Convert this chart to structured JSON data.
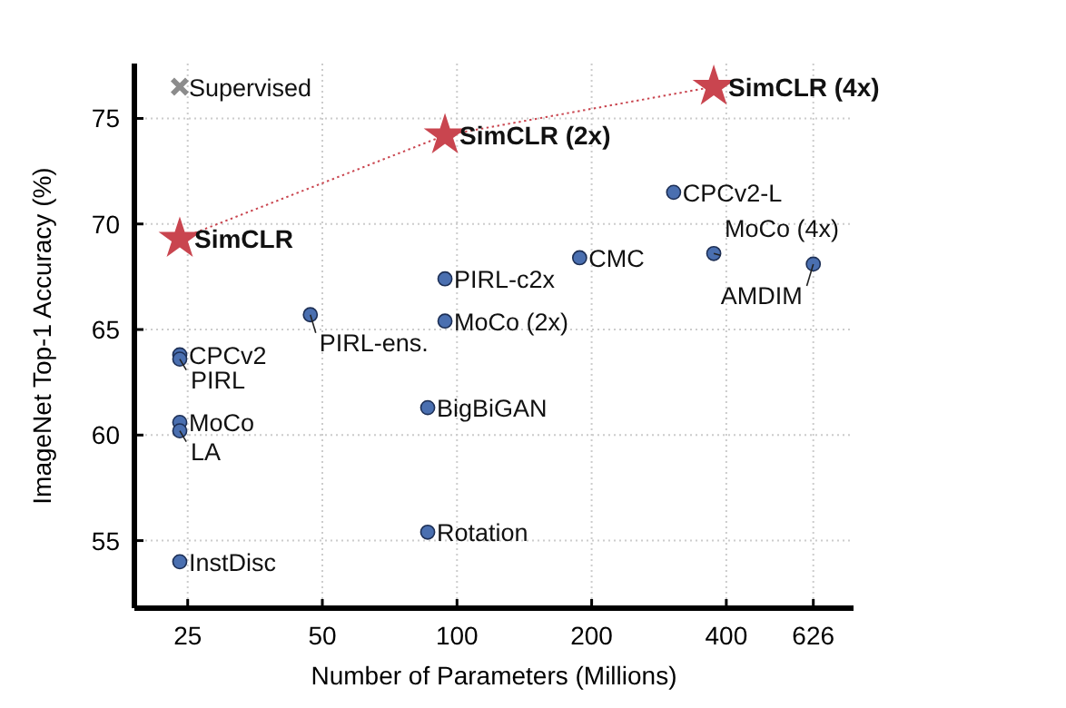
{
  "chart_data": {
    "type": "scatter",
    "xlabel": "Number of Parameters (Millions)",
    "ylabel": "ImageNet Top-1 Accuracy (%)",
    "log": "x",
    "xlim": [
      19,
      770
    ],
    "xticks": [
      25,
      50,
      100,
      200,
      400,
      626
    ],
    "ylim": [
      51.8,
      77.6
    ],
    "yticks": [
      55,
      60,
      65,
      70,
      75
    ],
    "grid": true,
    "series": [
      {
        "marker": "circle",
        "color": "#4a6fb0",
        "x": [
          305,
          375,
          626,
          188,
          94,
          94,
          47,
          24,
          24,
          24,
          24,
          24,
          86,
          86
        ],
        "values": [
          71.5,
          68.6,
          68.1,
          68.4,
          67.4,
          65.4,
          65.7,
          63.8,
          63.6,
          60.6,
          60.2,
          54.0,
          61.3,
          55.4
        ]
      },
      {
        "marker": "cross",
        "color": "#8c8c8c",
        "x": [
          24
        ],
        "values": [
          76.5
        ]
      },
      {
        "type": "line",
        "marker": "star",
        "line_style": "dotted",
        "color": "#c9454f",
        "x": [
          24,
          94,
          375
        ],
        "values": [
          69.3,
          74.2,
          76.5
        ]
      }
    ],
    "annotations": [
      {
        "text": "CPCv2-L",
        "x": 305,
        "y": 71.5
      },
      {
        "text": "MoCo (4x)",
        "x": 375,
        "y": 68.6
      },
      {
        "text": "AMDIM",
        "x": 626,
        "y": 68.1
      },
      {
        "text": "CMC",
        "x": 188,
        "y": 68.4
      },
      {
        "text": "PIRL-c2x",
        "x": 94,
        "y": 67.4
      },
      {
        "text": "MoCo (2x)",
        "x": 94,
        "y": 65.4
      },
      {
        "text": "PIRL-ens.",
        "x": 47,
        "y": 65.7
      },
      {
        "text": "CPCv2",
        "x": 24,
        "y": 63.8
      },
      {
        "text": "PIRL",
        "x": 24,
        "y": 63.6
      },
      {
        "text": "MoCo",
        "x": 24,
        "y": 60.6
      },
      {
        "text": "LA",
        "x": 24,
        "y": 60.2
      },
      {
        "text": "InstDisc",
        "x": 24,
        "y": 54.0
      },
      {
        "text": "BigBiGAN",
        "x": 86,
        "y": 61.3
      },
      {
        "text": "Rotation",
        "x": 86,
        "y": 55.4
      },
      {
        "text": "Supervised",
        "x": 24,
        "y": 76.5
      },
      {
        "text": "SimCLR",
        "x": 24,
        "y": 69.3
      },
      {
        "text": "SimCLR (2x)",
        "x": 94,
        "y": 74.2
      },
      {
        "text": "SimCLR (4x)",
        "x": 375,
        "y": 76.5
      }
    ]
  }
}
